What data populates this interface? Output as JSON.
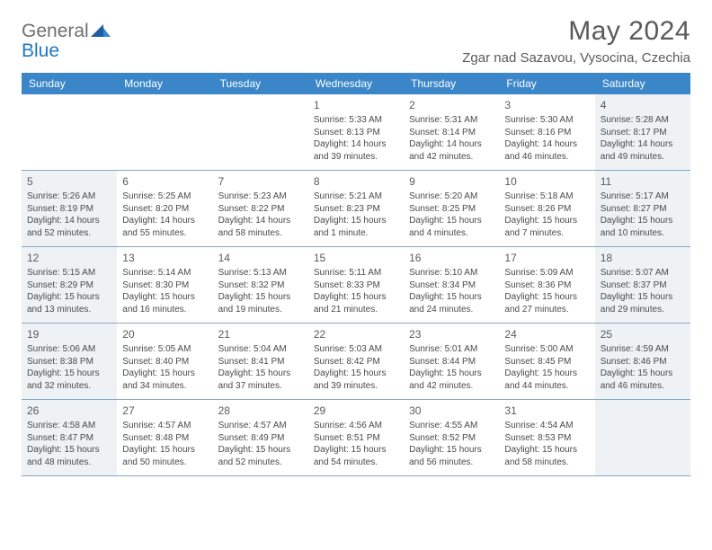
{
  "logo": {
    "line1": "General",
    "line2": "Blue"
  },
  "title": "May 2024",
  "location": "Zgar nad Sazavou, Vysocina, Czechia",
  "colors": {
    "header_bg": "#3b86c8",
    "header_text": "#ffffff",
    "shaded_bg": "#eef2f5",
    "border": "#8aa7bf",
    "text": "#4a4a4a",
    "title_text": "#5a5a5a",
    "logo_gray": "#6f6f6f",
    "logo_blue": "#2176c7"
  },
  "weekdays": [
    "Sunday",
    "Monday",
    "Tuesday",
    "Wednesday",
    "Thursday",
    "Friday",
    "Saturday"
  ],
  "weeks": [
    [
      {
        "blank": true,
        "shaded": false
      },
      {
        "blank": true,
        "shaded": false
      },
      {
        "blank": true,
        "shaded": false
      },
      {
        "num": "1",
        "shaded": false,
        "sunrise": "5:33 AM",
        "sunset": "8:13 PM",
        "daylight": "14 hours and 39 minutes."
      },
      {
        "num": "2",
        "shaded": false,
        "sunrise": "5:31 AM",
        "sunset": "8:14 PM",
        "daylight": "14 hours and 42 minutes."
      },
      {
        "num": "3",
        "shaded": false,
        "sunrise": "5:30 AM",
        "sunset": "8:16 PM",
        "daylight": "14 hours and 46 minutes."
      },
      {
        "num": "4",
        "shaded": true,
        "sunrise": "5:28 AM",
        "sunset": "8:17 PM",
        "daylight": "14 hours and 49 minutes."
      }
    ],
    [
      {
        "num": "5",
        "shaded": true,
        "sunrise": "5:26 AM",
        "sunset": "8:19 PM",
        "daylight": "14 hours and 52 minutes."
      },
      {
        "num": "6",
        "shaded": false,
        "sunrise": "5:25 AM",
        "sunset": "8:20 PM",
        "daylight": "14 hours and 55 minutes."
      },
      {
        "num": "7",
        "shaded": false,
        "sunrise": "5:23 AM",
        "sunset": "8:22 PM",
        "daylight": "14 hours and 58 minutes."
      },
      {
        "num": "8",
        "shaded": false,
        "sunrise": "5:21 AM",
        "sunset": "8:23 PM",
        "daylight": "15 hours and 1 minute."
      },
      {
        "num": "9",
        "shaded": false,
        "sunrise": "5:20 AM",
        "sunset": "8:25 PM",
        "daylight": "15 hours and 4 minutes."
      },
      {
        "num": "10",
        "shaded": false,
        "sunrise": "5:18 AM",
        "sunset": "8:26 PM",
        "daylight": "15 hours and 7 minutes."
      },
      {
        "num": "11",
        "shaded": true,
        "sunrise": "5:17 AM",
        "sunset": "8:27 PM",
        "daylight": "15 hours and 10 minutes."
      }
    ],
    [
      {
        "num": "12",
        "shaded": true,
        "sunrise": "5:15 AM",
        "sunset": "8:29 PM",
        "daylight": "15 hours and 13 minutes."
      },
      {
        "num": "13",
        "shaded": false,
        "sunrise": "5:14 AM",
        "sunset": "8:30 PM",
        "daylight": "15 hours and 16 minutes."
      },
      {
        "num": "14",
        "shaded": false,
        "sunrise": "5:13 AM",
        "sunset": "8:32 PM",
        "daylight": "15 hours and 19 minutes."
      },
      {
        "num": "15",
        "shaded": false,
        "sunrise": "5:11 AM",
        "sunset": "8:33 PM",
        "daylight": "15 hours and 21 minutes."
      },
      {
        "num": "16",
        "shaded": false,
        "sunrise": "5:10 AM",
        "sunset": "8:34 PM",
        "daylight": "15 hours and 24 minutes."
      },
      {
        "num": "17",
        "shaded": false,
        "sunrise": "5:09 AM",
        "sunset": "8:36 PM",
        "daylight": "15 hours and 27 minutes."
      },
      {
        "num": "18",
        "shaded": true,
        "sunrise": "5:07 AM",
        "sunset": "8:37 PM",
        "daylight": "15 hours and 29 minutes."
      }
    ],
    [
      {
        "num": "19",
        "shaded": true,
        "sunrise": "5:06 AM",
        "sunset": "8:38 PM",
        "daylight": "15 hours and 32 minutes."
      },
      {
        "num": "20",
        "shaded": false,
        "sunrise": "5:05 AM",
        "sunset": "8:40 PM",
        "daylight": "15 hours and 34 minutes."
      },
      {
        "num": "21",
        "shaded": false,
        "sunrise": "5:04 AM",
        "sunset": "8:41 PM",
        "daylight": "15 hours and 37 minutes."
      },
      {
        "num": "22",
        "shaded": false,
        "sunrise": "5:03 AM",
        "sunset": "8:42 PM",
        "daylight": "15 hours and 39 minutes."
      },
      {
        "num": "23",
        "shaded": false,
        "sunrise": "5:01 AM",
        "sunset": "8:44 PM",
        "daylight": "15 hours and 42 minutes."
      },
      {
        "num": "24",
        "shaded": false,
        "sunrise": "5:00 AM",
        "sunset": "8:45 PM",
        "daylight": "15 hours and 44 minutes."
      },
      {
        "num": "25",
        "shaded": true,
        "sunrise": "4:59 AM",
        "sunset": "8:46 PM",
        "daylight": "15 hours and 46 minutes."
      }
    ],
    [
      {
        "num": "26",
        "shaded": true,
        "sunrise": "4:58 AM",
        "sunset": "8:47 PM",
        "daylight": "15 hours and 48 minutes."
      },
      {
        "num": "27",
        "shaded": false,
        "sunrise": "4:57 AM",
        "sunset": "8:48 PM",
        "daylight": "15 hours and 50 minutes."
      },
      {
        "num": "28",
        "shaded": false,
        "sunrise": "4:57 AM",
        "sunset": "8:49 PM",
        "daylight": "15 hours and 52 minutes."
      },
      {
        "num": "29",
        "shaded": false,
        "sunrise": "4:56 AM",
        "sunset": "8:51 PM",
        "daylight": "15 hours and 54 minutes."
      },
      {
        "num": "30",
        "shaded": false,
        "sunrise": "4:55 AM",
        "sunset": "8:52 PM",
        "daylight": "15 hours and 56 minutes."
      },
      {
        "num": "31",
        "shaded": false,
        "sunrise": "4:54 AM",
        "sunset": "8:53 PM",
        "daylight": "15 hours and 58 minutes."
      },
      {
        "blank": true,
        "shaded": true
      }
    ]
  ],
  "labels": {
    "sunrise": "Sunrise:",
    "sunset": "Sunset:",
    "daylight": "Daylight:"
  }
}
